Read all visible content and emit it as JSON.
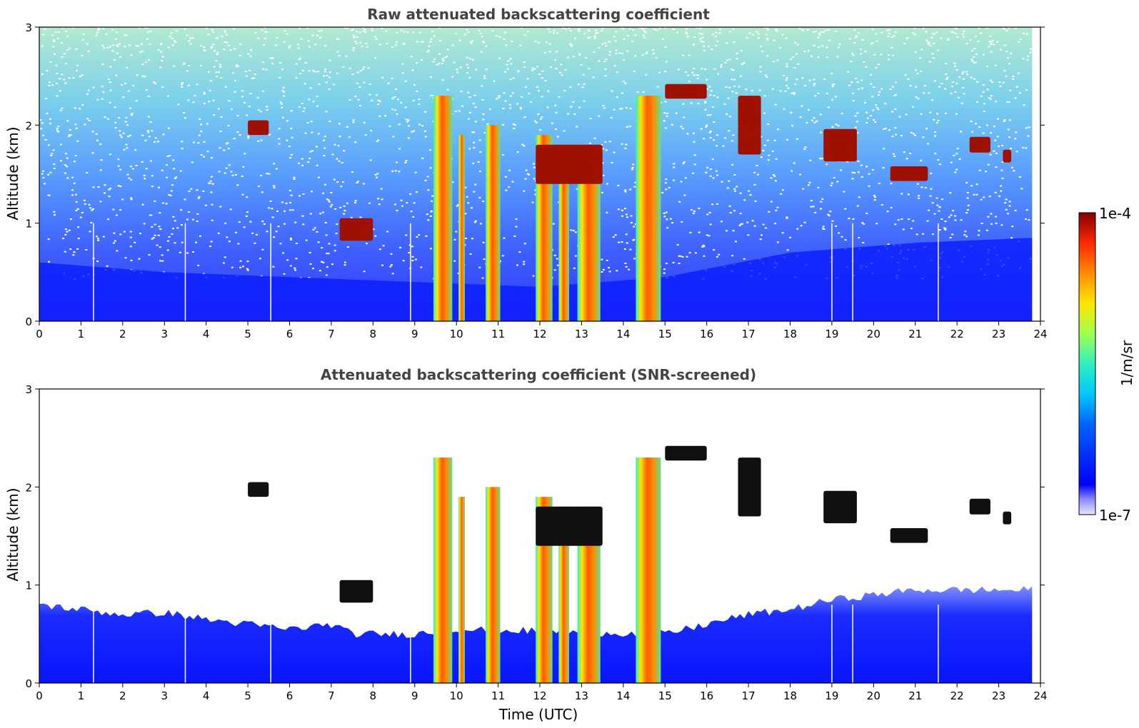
{
  "chart_data": [
    {
      "type": "heatmap",
      "title": "Raw attenuated backscattering coefficient",
      "xlabel": "",
      "ylabel": "Altitude (km)",
      "xlim": [
        0,
        24
      ],
      "ylim": [
        0,
        3
      ],
      "xticks": [
        "0",
        "1",
        "2",
        "3",
        "4",
        "5",
        "6",
        "7",
        "8",
        "9",
        "10",
        "11",
        "12",
        "13",
        "14",
        "15",
        "16",
        "17",
        "18",
        "19",
        "20",
        "21",
        "22",
        "23",
        "24"
      ],
      "yticks": [
        "0",
        "1",
        "2",
        "3"
      ],
      "data_extent_hours": [
        0,
        23.8
      ],
      "colorbar": {
        "label": "1/m/sr",
        "min": "1e-7",
        "max": "1e-4",
        "scale": "log"
      },
      "background": "noisy signal, blue near ground fading to cyan/white speckle aloft",
      "boundary_layer_top_km": [
        [
          0,
          0.6
        ],
        [
          3,
          0.5
        ],
        [
          6,
          0.45
        ],
        [
          9,
          0.4
        ],
        [
          12,
          0.35
        ],
        [
          15,
          0.45
        ],
        [
          18,
          0.7
        ],
        [
          21,
          0.8
        ],
        [
          23.8,
          0.85
        ]
      ],
      "cloud_columns": [
        {
          "x0": 9.45,
          "x1": 9.9,
          "top_km": 2.3
        },
        {
          "x0": 10.05,
          "x1": 10.2,
          "top_km": 1.9
        },
        {
          "x0": 10.7,
          "x1": 11.05,
          "top_km": 2.0
        },
        {
          "x0": 11.9,
          "x1": 12.3,
          "top_km": 1.9
        },
        {
          "x0": 12.45,
          "x1": 12.7,
          "top_km": 1.8
        },
        {
          "x0": 12.9,
          "x1": 13.45,
          "top_km": 1.8
        },
        {
          "x0": 14.3,
          "x1": 14.9,
          "top_km": 2.3
        }
      ],
      "cloud_layers": [
        {
          "x0": 5.0,
          "x1": 5.5,
          "base_km": 1.9,
          "top_km": 2.05
        },
        {
          "x0": 15.0,
          "x1": 16.0,
          "base_km": 2.27,
          "top_km": 2.42
        },
        {
          "x0": 16.75,
          "x1": 17.3,
          "base_km": 1.7,
          "top_km": 2.3
        },
        {
          "x0": 18.8,
          "x1": 19.6,
          "base_km": 1.63,
          "top_km": 1.96
        },
        {
          "x0": 20.4,
          "x1": 21.3,
          "base_km": 1.43,
          "top_km": 1.58
        },
        {
          "x0": 22.3,
          "x1": 22.8,
          "base_km": 1.72,
          "top_km": 1.88
        },
        {
          "x0": 23.1,
          "x1": 23.3,
          "base_km": 1.62,
          "top_km": 1.75
        },
        {
          "x0": 7.2,
          "x1": 8.0,
          "base_km": 0.82,
          "top_km": 1.05
        },
        {
          "x0": 11.9,
          "x1": 13.5,
          "base_km": 1.4,
          "top_km": 1.8
        }
      ],
      "gaps_hours": [
        1.3,
        3.5,
        5.55,
        8.9,
        19.0,
        19.5,
        21.55
      ]
    },
    {
      "type": "heatmap",
      "title": "Attenuated backscattering coefficient (SNR-screened)",
      "xlabel": "Time (UTC)",
      "ylabel": "Altitude (km)",
      "xlim": [
        0,
        24
      ],
      "ylim": [
        0,
        3
      ],
      "xticks": [
        "0",
        "1",
        "2",
        "3",
        "4",
        "5",
        "6",
        "7",
        "8",
        "9",
        "10",
        "11",
        "12",
        "13",
        "14",
        "15",
        "16",
        "17",
        "18",
        "19",
        "20",
        "21",
        "22",
        "23",
        "24"
      ],
      "yticks": [
        "0",
        "1",
        "2",
        "3"
      ],
      "data_extent_hours": [
        0,
        23.8
      ],
      "colorbar": {
        "label": "1/m/sr",
        "min": "1e-7",
        "max": "1e-4",
        "scale": "log"
      },
      "background": "white (masked) above boundary layer",
      "boundary_layer_top_km": [
        [
          0,
          0.8
        ],
        [
          1,
          0.75
        ],
        [
          2,
          0.7
        ],
        [
          3,
          0.72
        ],
        [
          4,
          0.65
        ],
        [
          5,
          0.6
        ],
        [
          6,
          0.55
        ],
        [
          7,
          0.6
        ],
        [
          7.5,
          0.5
        ],
        [
          9,
          0.5
        ],
        [
          10,
          0.55
        ],
        [
          15,
          0.5
        ],
        [
          16,
          0.6
        ],
        [
          17,
          0.7
        ],
        [
          18,
          0.75
        ],
        [
          19,
          0.85
        ],
        [
          21,
          0.95
        ],
        [
          23.8,
          0.95
        ]
      ],
      "gaps_hours": [
        1.3,
        3.5,
        5.55,
        8.9,
        19.0,
        19.5,
        21.55
      ]
    }
  ]
}
